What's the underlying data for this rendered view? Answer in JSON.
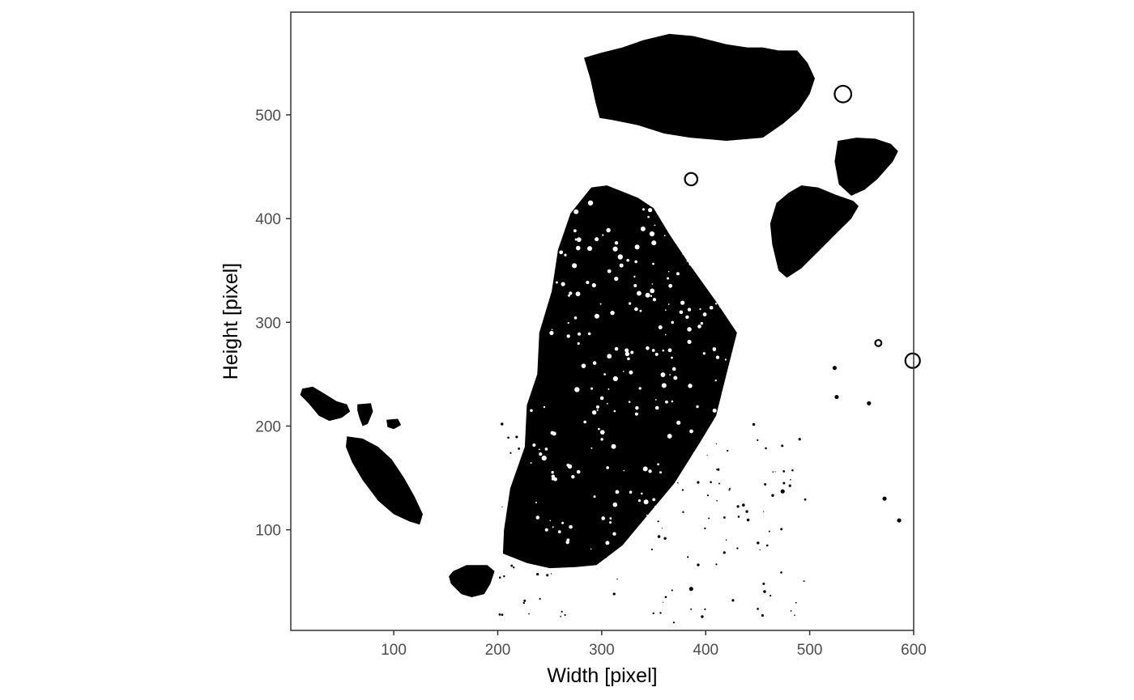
{
  "chart_data": {
    "type": "image",
    "xlabel": "Width [pixel]",
    "ylabel": "Height [pixel]",
    "xlim": [
      1,
      600
    ],
    "ylim": [
      3,
      599
    ],
    "x_ticks": [
      100,
      200,
      300,
      400,
      500,
      600
    ],
    "y_ticks": [
      100,
      200,
      300,
      400,
      500
    ],
    "x_tick_labels": [
      "100",
      "200",
      "300",
      "400",
      "500",
      "600"
    ],
    "y_tick_labels": [
      "100",
      "200",
      "300",
      "400",
      "500"
    ],
    "colors": {
      "foreground": "#000000",
      "background": "#ffffff",
      "tick_text": "#4d4d4d"
    },
    "regions": [
      {
        "name": "main-tissue-section",
        "points": [
          [
            250,
            63
          ],
          [
            275,
            64
          ],
          [
            295,
            66
          ],
          [
            320,
            85
          ],
          [
            345,
            115
          ],
          [
            370,
            145
          ],
          [
            395,
            185
          ],
          [
            410,
            210
          ],
          [
            420,
            250
          ],
          [
            430,
            290
          ],
          [
            410,
            320
          ],
          [
            385,
            355
          ],
          [
            365,
            385
          ],
          [
            350,
            410
          ],
          [
            335,
            420
          ],
          [
            305,
            432
          ],
          [
            290,
            430
          ],
          [
            270,
            405
          ],
          [
            258,
            370
          ],
          [
            252,
            330
          ],
          [
            240,
            290
          ],
          [
            238,
            250
          ],
          [
            228,
            220
          ],
          [
            226,
            180
          ],
          [
            212,
            140
          ],
          [
            206,
            100
          ],
          [
            205,
            77
          ],
          [
            228,
            68
          ]
        ]
      },
      {
        "name": "top-tissue-block",
        "points": [
          [
            283,
            555
          ],
          [
            300,
            560
          ],
          [
            320,
            565
          ],
          [
            340,
            572
          ],
          [
            365,
            578
          ],
          [
            388,
            576
          ],
          [
            400,
            573
          ],
          [
            420,
            568
          ],
          [
            440,
            565
          ],
          [
            455,
            565
          ],
          [
            470,
            562
          ],
          [
            488,
            562
          ],
          [
            498,
            550
          ],
          [
            505,
            535
          ],
          [
            500,
            520
          ],
          [
            490,
            505
          ],
          [
            475,
            492
          ],
          [
            455,
            478
          ],
          [
            420,
            475
          ],
          [
            385,
            478
          ],
          [
            360,
            482
          ],
          [
            335,
            490
          ],
          [
            310,
            495
          ],
          [
            298,
            497
          ],
          [
            294,
            512
          ],
          [
            289,
            535
          ]
        ]
      },
      {
        "name": "top-right-lobe",
        "points": [
          [
            527,
            475
          ],
          [
            545,
            478
          ],
          [
            563,
            477
          ],
          [
            578,
            472
          ],
          [
            585,
            465
          ],
          [
            580,
            455
          ],
          [
            565,
            438
          ],
          [
            553,
            428
          ],
          [
            540,
            422
          ],
          [
            528,
            433
          ],
          [
            524,
            455
          ]
        ]
      },
      {
        "name": "right-lobe",
        "points": [
          [
            480,
            425
          ],
          [
            492,
            432
          ],
          [
            508,
            430
          ],
          [
            525,
            423
          ],
          [
            542,
            417
          ],
          [
            547,
            412
          ],
          [
            540,
            400
          ],
          [
            525,
            385
          ],
          [
            508,
            368
          ],
          [
            492,
            352
          ],
          [
            478,
            343
          ],
          [
            470,
            350
          ],
          [
            464,
            375
          ],
          [
            462,
            395
          ],
          [
            468,
            415
          ]
        ]
      },
      {
        "name": "left-island-small",
        "points": [
          [
            12,
            236
          ],
          [
            22,
            238
          ],
          [
            32,
            232
          ],
          [
            45,
            224
          ],
          [
            55,
            221
          ],
          [
            58,
            214
          ],
          [
            50,
            208
          ],
          [
            38,
            205
          ],
          [
            28,
            210
          ],
          [
            18,
            222
          ],
          [
            10,
            230
          ]
        ]
      },
      {
        "name": "left-island-dot-a",
        "points": [
          [
            65,
            221
          ],
          [
            78,
            222
          ],
          [
            80,
            214
          ],
          [
            75,
            202
          ],
          [
            70,
            200
          ],
          [
            67,
            208
          ],
          [
            65,
            215
          ]
        ]
      },
      {
        "name": "left-island-dot-b",
        "points": [
          [
            93,
            206
          ],
          [
            104,
            207
          ],
          [
            107,
            201
          ],
          [
            100,
            197
          ],
          [
            94,
            199
          ]
        ]
      },
      {
        "name": "left-island-long",
        "points": [
          [
            55,
            190
          ],
          [
            70,
            188
          ],
          [
            85,
            180
          ],
          [
            98,
            168
          ],
          [
            110,
            150
          ],
          [
            120,
            132
          ],
          [
            128,
            115
          ],
          [
            125,
            105
          ],
          [
            115,
            108
          ],
          [
            100,
            115
          ],
          [
            85,
            128
          ],
          [
            70,
            148
          ],
          [
            60,
            165
          ],
          [
            54,
            180
          ]
        ]
      },
      {
        "name": "bottom-blob",
        "points": [
          [
            157,
            60
          ],
          [
            170,
            66
          ],
          [
            190,
            66
          ],
          [
            197,
            60
          ],
          [
            193,
            48
          ],
          [
            187,
            38
          ],
          [
            175,
            35
          ],
          [
            165,
            38
          ],
          [
            155,
            48
          ],
          [
            153,
            55
          ]
        ]
      },
      {
        "name": "ring-top-right",
        "cx": 532,
        "cy": 520,
        "r": 8,
        "ring": true
      },
      {
        "name": "ring-middle-left",
        "cx": 386,
        "cy": 438,
        "r": 6,
        "ring": true
      },
      {
        "name": "ring-right-edge",
        "cx": 599,
        "cy": 263,
        "r": 7,
        "ring": true
      },
      {
        "name": "ring-small-right",
        "cx": 566,
        "cy": 280,
        "r": 3,
        "ring": true
      },
      {
        "name": "dot-right-1",
        "cx": 524,
        "cy": 256,
        "r": 2,
        "ring": false
      },
      {
        "name": "dot-right-2",
        "cx": 526,
        "cy": 228,
        "r": 2,
        "ring": false
      },
      {
        "name": "dot-right-3",
        "cx": 557,
        "cy": 222,
        "r": 2,
        "ring": false
      },
      {
        "name": "dot-right-4",
        "cx": 474,
        "cy": 137,
        "r": 2,
        "ring": false
      },
      {
        "name": "dot-right-5",
        "cx": 572,
        "cy": 130,
        "r": 2,
        "ring": false
      },
      {
        "name": "dot-right-6",
        "cx": 586,
        "cy": 109,
        "r": 2,
        "ring": false
      },
      {
        "name": "dot-bottom-1",
        "cx": 386,
        "cy": 43,
        "r": 2,
        "ring": false
      }
    ]
  }
}
